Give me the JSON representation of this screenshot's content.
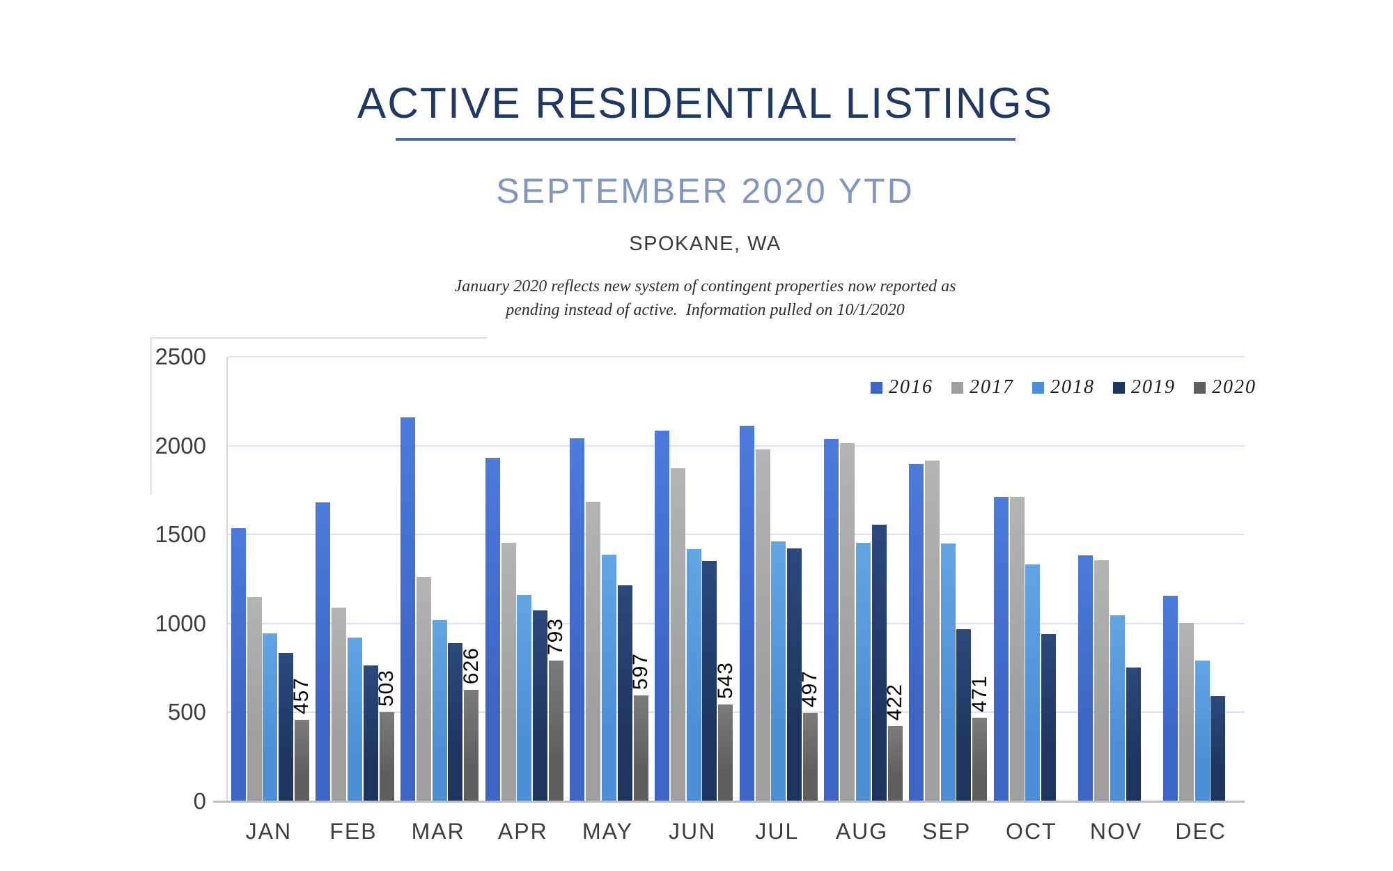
{
  "header": {
    "title": "ACTIVE RESIDENTIAL LISTINGS",
    "subtitle": "SEPTEMBER 2020 YTD",
    "location": "SPOKANE, WA",
    "note_line1": "January 2020 reflects new system of contingent properties now reported as",
    "note_line2": "pending instead of active.  Information pulled on 10/1/2020",
    "title_color": "#1F3864",
    "underline_color": "#4D69A5",
    "subtitle_color": "#8096BE"
  },
  "chart_data": {
    "type": "bar",
    "title": "",
    "xlabel": "",
    "ylabel": "",
    "categories": [
      "JAN",
      "FEB",
      "MAR",
      "APR",
      "MAY",
      "JUN",
      "JUL",
      "AUG",
      "SEP",
      "OCT",
      "NOV",
      "DEC"
    ],
    "series": [
      {
        "name": "2016",
        "color": "#3D65C6",
        "color_light": "#4C7BDB",
        "values": [
          1535,
          1680,
          2160,
          1933,
          2040,
          2086,
          2113,
          2038,
          1898,
          1711,
          1383,
          1154
        ]
      },
      {
        "name": "2017",
        "color": "#9F9F9F",
        "color_light": "#B4B4B4",
        "values": [
          1148,
          1089,
          1263,
          1453,
          1684,
          1872,
          1977,
          2013,
          1917,
          1711,
          1355,
          1004
        ]
      },
      {
        "name": "2018",
        "color": "#4D8FD6",
        "color_light": "#65A4E3",
        "values": [
          945,
          921,
          1017,
          1158,
          1387,
          1419,
          1462,
          1454,
          1451,
          1331,
          1046,
          792
        ]
      },
      {
        "name": "2019",
        "color": "#1E3560",
        "color_light": "#2C497C",
        "values": [
          833,
          765,
          889,
          1074,
          1215,
          1350,
          1424,
          1555,
          969,
          940,
          752,
          591
        ]
      },
      {
        "name": "2020",
        "color": "#5E5E5E",
        "color_light": "#7B7B7B",
        "show_labels": true,
        "values": [
          457,
          503,
          626,
          793,
          597,
          543,
          497,
          422,
          471,
          null,
          null,
          null
        ]
      }
    ],
    "ylim": [
      0,
      2500
    ],
    "y_ticks": [
      0,
      500,
      1000,
      1500,
      2000,
      2500
    ],
    "grid": "horizontal",
    "grid_color": "#DAE3F3",
    "axis_color": "#BFBFBF",
    "tick_label_color": "#3D3D3D",
    "legend_position": "top-right"
  }
}
